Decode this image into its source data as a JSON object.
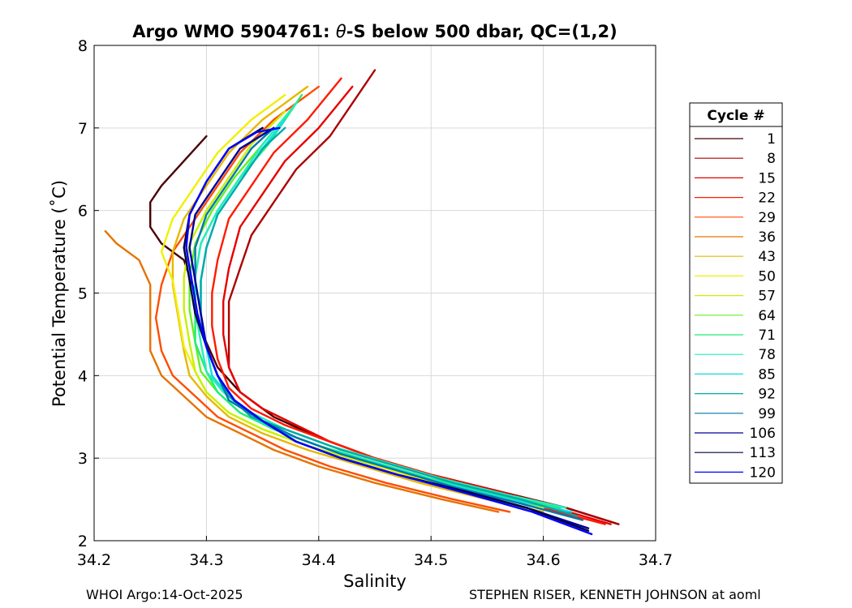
{
  "chart_data": {
    "type": "line",
    "title_prefix": "Argo WMO 5904761: ",
    "title_symbol": "θ",
    "title_suffix": "-S below 500 dbar,  QC=(1,2)",
    "xlabel": "Salinity",
    "ylabel": "Potential Temperature (˚C)",
    "xlim": [
      34.2,
      34.7
    ],
    "ylim": [
      2,
      8
    ],
    "xticks": [
      34.2,
      34.3,
      34.4,
      34.5,
      34.6,
      34.7
    ],
    "xtick_labels": [
      "34.2",
      "34.3",
      "34.4",
      "34.5",
      "34.6",
      "34.7"
    ],
    "yticks": [
      2,
      3,
      4,
      5,
      6,
      7,
      8
    ],
    "ytick_labels": [
      "2",
      "3",
      "4",
      "5",
      "6",
      "7",
      "8"
    ],
    "grid": true,
    "legend_title": "Cycle #",
    "legend_position": "outside-right",
    "legend": [
      {
        "label": "1",
        "color": "#4a0000"
      },
      {
        "label": "8",
        "color": "#aa0000"
      },
      {
        "label": "15",
        "color": "#e60000"
      },
      {
        "label": "22",
        "color": "#ff1a00"
      },
      {
        "label": "29",
        "color": "#ff4d00"
      },
      {
        "label": "36",
        "color": "#e67300"
      },
      {
        "label": "43",
        "color": "#e6b800"
      },
      {
        "label": "50",
        "color": "#f0f000"
      },
      {
        "label": "57",
        "color": "#c8f000"
      },
      {
        "label": "64",
        "color": "#66ee22"
      },
      {
        "label": "71",
        "color": "#22ee77"
      },
      {
        "label": "78",
        "color": "#22eebb"
      },
      {
        "label": "85",
        "color": "#11dddd"
      },
      {
        "label": "92",
        "color": "#00aaaa"
      },
      {
        "label": "99",
        "color": "#0077aa"
      },
      {
        "label": "106",
        "color": "#000099"
      },
      {
        "label": "113",
        "color": "#000044"
      },
      {
        "label": "120",
        "color": "#0000ff"
      }
    ],
    "series": [
      {
        "name": "1",
        "color": "#4a0000",
        "x": [
          34.667,
          34.62,
          34.56,
          34.5,
          34.45,
          34.4,
          34.36,
          34.33,
          34.31,
          34.3,
          34.29,
          34.29,
          34.285,
          34.28,
          34.26,
          34.25,
          34.25,
          34.25,
          34.26,
          34.28,
          34.3
        ],
        "y": [
          2.2,
          2.4,
          2.6,
          2.8,
          3.0,
          3.25,
          3.5,
          3.8,
          4.1,
          4.4,
          4.7,
          5.0,
          5.2,
          5.4,
          5.6,
          5.8,
          6.0,
          6.1,
          6.3,
          6.6,
          6.9
        ]
      },
      {
        "name": "8",
        "color": "#aa0000",
        "x": [
          34.667,
          34.62,
          34.56,
          34.5,
          34.45,
          34.41,
          34.38,
          34.35,
          34.33,
          34.32,
          34.32,
          34.32,
          34.33,
          34.34,
          34.36,
          34.38,
          34.41,
          34.43,
          34.45
        ],
        "y": [
          2.2,
          2.4,
          2.6,
          2.8,
          3.0,
          3.2,
          3.4,
          3.6,
          3.8,
          4.1,
          4.5,
          4.9,
          5.3,
          5.7,
          6.1,
          6.5,
          6.9,
          7.3,
          7.7
        ]
      },
      {
        "name": "15",
        "color": "#e60000",
        "x": [
          34.66,
          34.61,
          34.56,
          34.5,
          34.45,
          34.41,
          34.38,
          34.35,
          34.33,
          34.32,
          34.315,
          34.315,
          34.32,
          34.33,
          34.35,
          34.37,
          34.4,
          34.43
        ],
        "y": [
          2.2,
          2.4,
          2.6,
          2.8,
          3.0,
          3.2,
          3.4,
          3.6,
          3.8,
          4.1,
          4.5,
          4.9,
          5.3,
          5.8,
          6.2,
          6.6,
          7.0,
          7.5
        ]
      },
      {
        "name": "22",
        "color": "#ff1a00",
        "x": [
          34.655,
          34.6,
          34.55,
          34.5,
          34.45,
          34.41,
          34.37,
          34.34,
          34.32,
          34.31,
          34.305,
          34.305,
          34.31,
          34.32,
          34.34,
          34.36,
          34.39,
          34.42
        ],
        "y": [
          2.2,
          2.4,
          2.6,
          2.8,
          3.0,
          3.2,
          3.4,
          3.6,
          3.85,
          4.2,
          4.6,
          5.0,
          5.4,
          5.9,
          6.3,
          6.7,
          7.1,
          7.6
        ]
      },
      {
        "name": "29",
        "color": "#ff4d00",
        "x": [
          34.57,
          34.52,
          34.46,
          34.41,
          34.37,
          34.34,
          34.31,
          34.29,
          34.27,
          34.26,
          34.255,
          34.26,
          34.27,
          34.29,
          34.31,
          34.33,
          34.36,
          34.4
        ],
        "y": [
          2.35,
          2.5,
          2.7,
          2.9,
          3.1,
          3.3,
          3.5,
          3.75,
          4.0,
          4.3,
          4.7,
          5.1,
          5.5,
          5.9,
          6.3,
          6.7,
          7.1,
          7.5
        ]
      },
      {
        "name": "36",
        "color": "#e67300",
        "x": [
          34.56,
          34.51,
          34.45,
          34.4,
          34.36,
          34.33,
          34.3,
          34.28,
          34.26,
          34.25,
          34.25,
          34.25,
          34.24,
          34.22,
          34.21
        ],
        "y": [
          2.35,
          2.5,
          2.7,
          2.9,
          3.1,
          3.3,
          3.5,
          3.75,
          4.0,
          4.3,
          4.7,
          5.1,
          5.4,
          5.6,
          5.75
        ]
      },
      {
        "name": "43",
        "color": "#e6b800",
        "x": [
          34.6,
          34.55,
          34.49,
          34.44,
          34.39,
          34.35,
          34.32,
          34.3,
          34.285,
          34.28,
          34.275,
          34.27,
          34.27,
          34.28,
          34.3,
          34.32,
          34.35,
          34.39
        ],
        "y": [
          2.35,
          2.5,
          2.7,
          2.9,
          3.1,
          3.3,
          3.5,
          3.75,
          4.0,
          4.3,
          4.7,
          5.1,
          5.5,
          5.9,
          6.3,
          6.7,
          7.1,
          7.5
        ]
      },
      {
        "name": "50",
        "color": "#f0f000",
        "x": [
          34.6,
          34.55,
          34.49,
          34.44,
          34.39,
          34.35,
          34.32,
          34.3,
          34.29,
          34.28,
          34.275,
          34.27,
          34.26,
          34.27,
          34.29,
          34.31,
          34.34,
          34.37
        ],
        "y": [
          2.4,
          2.55,
          2.75,
          2.95,
          3.15,
          3.35,
          3.55,
          3.8,
          4.05,
          4.35,
          4.75,
          5.15,
          5.5,
          5.9,
          6.3,
          6.7,
          7.1,
          7.4
        ]
      },
      {
        "name": "57",
        "color": "#c8f000",
        "x": [
          34.605,
          34.55,
          34.5,
          34.44,
          34.39,
          34.35,
          34.32,
          34.3,
          34.29,
          34.285,
          34.28,
          34.28,
          34.285,
          34.3,
          34.32,
          34.34,
          34.37
        ],
        "y": [
          2.4,
          2.55,
          2.75,
          2.95,
          3.15,
          3.35,
          3.55,
          3.8,
          4.05,
          4.4,
          4.8,
          5.2,
          5.6,
          6.0,
          6.4,
          6.8,
          7.2
        ]
      },
      {
        "name": "64",
        "color": "#66ee22",
        "x": [
          34.61,
          34.56,
          34.5,
          34.45,
          34.4,
          34.36,
          34.33,
          34.31,
          34.295,
          34.29,
          34.285,
          34.285,
          34.29,
          34.305,
          34.325,
          34.35,
          34.38
        ],
        "y": [
          2.4,
          2.55,
          2.75,
          2.95,
          3.15,
          3.35,
          3.55,
          3.8,
          4.05,
          4.4,
          4.8,
          5.2,
          5.6,
          6.0,
          6.4,
          6.8,
          7.3
        ]
      },
      {
        "name": "71",
        "color": "#22ee77",
        "x": [
          34.615,
          34.56,
          34.5,
          34.45,
          34.4,
          34.36,
          34.33,
          34.31,
          34.3,
          34.29,
          34.29,
          34.29,
          34.295,
          34.31,
          34.33,
          34.355,
          34.385
        ],
        "y": [
          2.4,
          2.55,
          2.75,
          2.95,
          3.15,
          3.35,
          3.55,
          3.8,
          4.05,
          4.4,
          4.8,
          5.2,
          5.6,
          6.0,
          6.4,
          6.8,
          7.4
        ]
      },
      {
        "name": "78",
        "color": "#22eebb",
        "x": [
          34.62,
          34.57,
          34.51,
          34.46,
          34.41,
          34.37,
          34.34,
          34.315,
          34.3,
          34.295,
          34.29,
          34.29,
          34.295,
          34.31,
          34.33,
          34.35,
          34.38
        ],
        "y": [
          2.4,
          2.55,
          2.75,
          2.95,
          3.15,
          3.35,
          3.55,
          3.8,
          4.05,
          4.4,
          4.8,
          5.2,
          5.6,
          6.0,
          6.4,
          6.8,
          7.3
        ]
      },
      {
        "name": "85",
        "color": "#11dddd",
        "x": [
          34.625,
          34.57,
          34.51,
          34.46,
          34.41,
          34.37,
          34.34,
          34.32,
          34.305,
          34.3,
          34.295,
          34.295,
          34.3,
          34.31,
          34.33,
          34.35,
          34.37
        ],
        "y": [
          2.35,
          2.5,
          2.7,
          2.9,
          3.1,
          3.3,
          3.5,
          3.75,
          4.0,
          4.35,
          4.75,
          5.15,
          5.55,
          5.95,
          6.35,
          6.75,
          7.1
        ]
      },
      {
        "name": "92",
        "color": "#00aaaa",
        "x": [
          34.63,
          34.58,
          34.52,
          34.47,
          34.42,
          34.38,
          34.34,
          34.32,
          34.31,
          34.3,
          34.295,
          34.295,
          34.3,
          34.31,
          34.33,
          34.35,
          34.37
        ],
        "y": [
          2.3,
          2.5,
          2.7,
          2.9,
          3.1,
          3.3,
          3.5,
          3.75,
          4.0,
          4.35,
          4.75,
          5.15,
          5.55,
          5.95,
          6.35,
          6.75,
          7.0
        ]
      },
      {
        "name": "99",
        "color": "#0077aa",
        "x": [
          34.635,
          34.58,
          34.52,
          34.47,
          34.42,
          34.38,
          34.35,
          34.32,
          34.31,
          34.3,
          34.295,
          34.29,
          34.29,
          34.3,
          34.32,
          34.34,
          34.36
        ],
        "y": [
          2.25,
          2.45,
          2.65,
          2.85,
          3.05,
          3.25,
          3.45,
          3.7,
          4.0,
          4.35,
          4.75,
          5.15,
          5.55,
          5.95,
          6.35,
          6.75,
          7.0
        ]
      },
      {
        "name": "106",
        "color": "#000099",
        "x": [
          34.64,
          34.585,
          34.53,
          34.47,
          34.42,
          34.38,
          34.35,
          34.325,
          34.31,
          34.3,
          34.295,
          34.29,
          34.285,
          34.29,
          34.31,
          34.33,
          34.36
        ],
        "y": [
          2.15,
          2.4,
          2.6,
          2.8,
          3.0,
          3.2,
          3.45,
          3.7,
          4.0,
          4.35,
          4.75,
          5.15,
          5.55,
          5.95,
          6.35,
          6.75,
          7.0
        ]
      },
      {
        "name": "113",
        "color": "#000044",
        "x": [
          34.64,
          34.585,
          34.53,
          34.47,
          34.42,
          34.38,
          34.35,
          34.325,
          34.31,
          34.3,
          34.29,
          34.285,
          34.28,
          34.285,
          34.3,
          34.32,
          34.35
        ],
        "y": [
          2.12,
          2.4,
          2.6,
          2.8,
          3.0,
          3.2,
          3.45,
          3.7,
          4.0,
          4.35,
          4.75,
          5.15,
          5.55,
          5.95,
          6.35,
          6.75,
          7.0
        ]
      },
      {
        "name": "120",
        "color": "#0000ff",
        "x": [
          34.643,
          34.59,
          34.53,
          34.47,
          34.42,
          34.38,
          34.35,
          34.325,
          34.31,
          34.3,
          34.292,
          34.287,
          34.282,
          34.285,
          34.3,
          34.32,
          34.345,
          34.365
        ],
        "y": [
          2.08,
          2.35,
          2.58,
          2.8,
          3.0,
          3.2,
          3.45,
          3.7,
          4.0,
          4.35,
          4.75,
          5.15,
          5.55,
          5.95,
          6.35,
          6.75,
          6.95,
          7.0
        ]
      }
    ]
  },
  "footer": {
    "left": "WHOI Argo:14-Oct-2025",
    "right": "STEPHEN RISER, KENNETH JOHNSON at aoml"
  }
}
